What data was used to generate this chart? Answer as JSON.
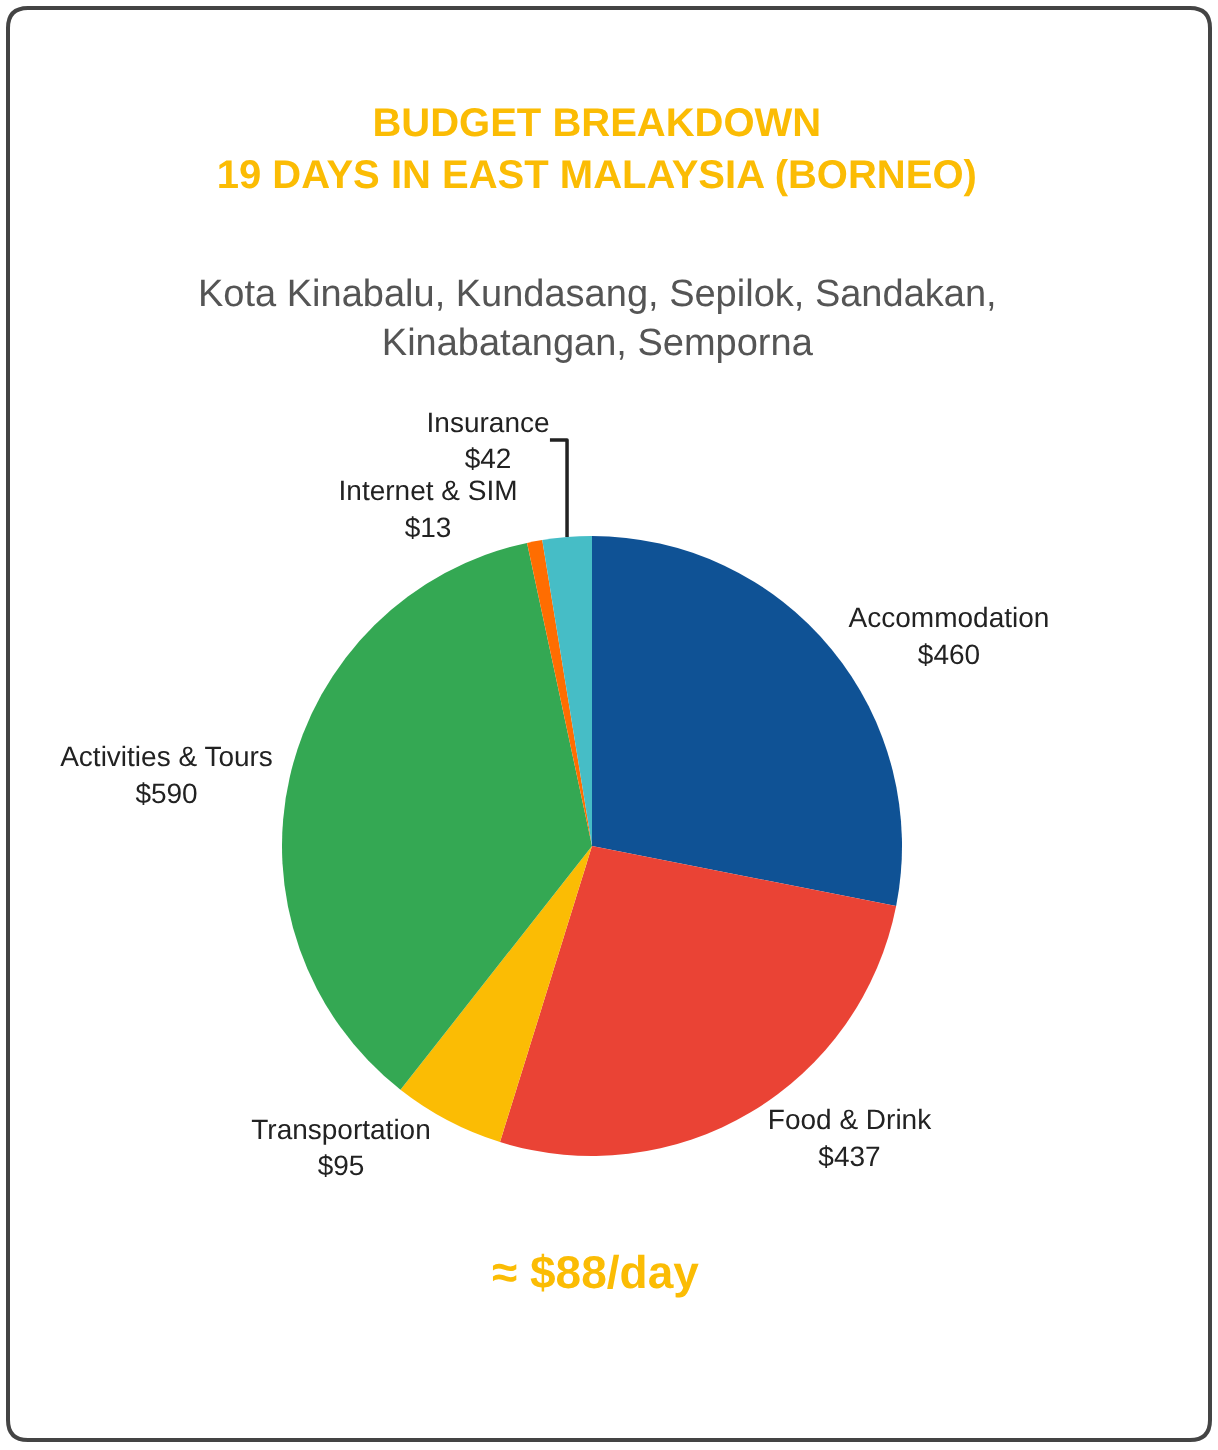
{
  "chart_data": {
    "type": "pie",
    "title": "BUDGET BREAKDOWN\n19 DAYS IN EAST MALAYSIA (BORNEO)",
    "subtitle": "Kota Kinabalu, Kundasang, Sepilok, Sandakan,\nKinabatangan, Semporna",
    "categories": [
      "Accommodation",
      "Food & Drink",
      "Transportation",
      "Activities & Tours",
      "Internet & SIM",
      "Insurance"
    ],
    "values": [
      460,
      437,
      95,
      590,
      13,
      42
    ],
    "value_labels": [
      "$460",
      "$437",
      "$95",
      "$590",
      "$13",
      "$42"
    ],
    "colors": [
      "#0f5295",
      "#ea4335",
      "#fbbc04",
      "#34a853",
      "#ff6d01",
      "#46bdc6"
    ],
    "annotations": [
      "≈ $88/day"
    ],
    "legend": false
  }
}
